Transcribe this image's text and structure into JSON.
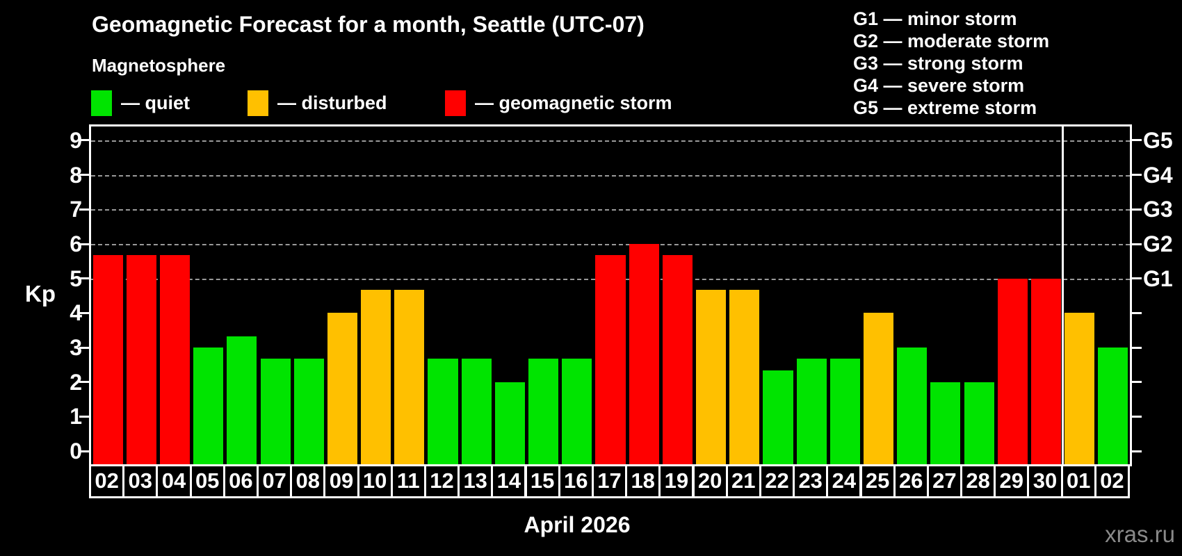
{
  "title": "Geomagnetic Forecast for a month, Seattle (UTC-07)",
  "subtitle": "Magnetosphere",
  "legend": {
    "quiet": {
      "label": "— quiet",
      "color": "#00e400"
    },
    "disturbed": {
      "label": "— disturbed",
      "color": "#ffc000"
    },
    "storm": {
      "label": "— geomagnetic storm",
      "color": "#ff0000"
    }
  },
  "g_scale_legend": [
    "G1 — minor storm",
    "G2 — moderate storm",
    "G3 — strong storm",
    "G4 — severe storm",
    "G5 — extreme storm"
  ],
  "axis": {
    "y_label": "Kp",
    "y_ticks": [
      0,
      1,
      2,
      3,
      4,
      5,
      6,
      7,
      8,
      9
    ],
    "right_labels": [
      {
        "kp": 5,
        "label": "G1"
      },
      {
        "kp": 6,
        "label": "G2"
      },
      {
        "kp": 7,
        "label": "G3"
      },
      {
        "kp": 8,
        "label": "G4"
      },
      {
        "kp": 9,
        "label": "G5"
      }
    ],
    "x_label": "April 2026"
  },
  "watermark": "xras.ru",
  "colors": {
    "background": "#000000",
    "frame": "#ffffff",
    "gridline": "#9a9a9a",
    "watermark_text": "#8a8a8a"
  },
  "chart_data": {
    "type": "bar",
    "title": "Geomagnetic Forecast for a month, Seattle (UTC-07)",
    "xlabel": "April 2026",
    "ylabel": "Kp",
    "ylim": [
      -0.38,
      9.4
    ],
    "gridlines_at": [
      5,
      6,
      7,
      8,
      9
    ],
    "grid": "dashed horizontal at G-storm levels only",
    "legend_position": "top",
    "month_separator_after_index": 28,
    "categories": [
      "02",
      "03",
      "04",
      "05",
      "06",
      "07",
      "08",
      "09",
      "10",
      "11",
      "12",
      "13",
      "14",
      "15",
      "16",
      "17",
      "18",
      "19",
      "20",
      "21",
      "22",
      "23",
      "24",
      "25",
      "26",
      "27",
      "28",
      "29",
      "30",
      "01",
      "02"
    ],
    "values": [
      5.67,
      5.67,
      5.67,
      3.0,
      3.33,
      2.67,
      2.67,
      4.0,
      4.67,
      4.67,
      2.67,
      2.67,
      2.0,
      2.67,
      2.67,
      5.67,
      6.0,
      5.67,
      4.67,
      4.67,
      2.33,
      2.67,
      2.67,
      4.0,
      3.0,
      2.0,
      2.0,
      5.0,
      5.0,
      4.0,
      3.0
    ],
    "statuses": [
      "storm",
      "storm",
      "storm",
      "quiet",
      "quiet",
      "quiet",
      "quiet",
      "disturbed",
      "disturbed",
      "disturbed",
      "quiet",
      "quiet",
      "quiet",
      "quiet",
      "quiet",
      "storm",
      "storm",
      "storm",
      "disturbed",
      "disturbed",
      "quiet",
      "quiet",
      "quiet",
      "disturbed",
      "quiet",
      "quiet",
      "quiet",
      "storm",
      "storm",
      "disturbed",
      "quiet"
    ]
  }
}
